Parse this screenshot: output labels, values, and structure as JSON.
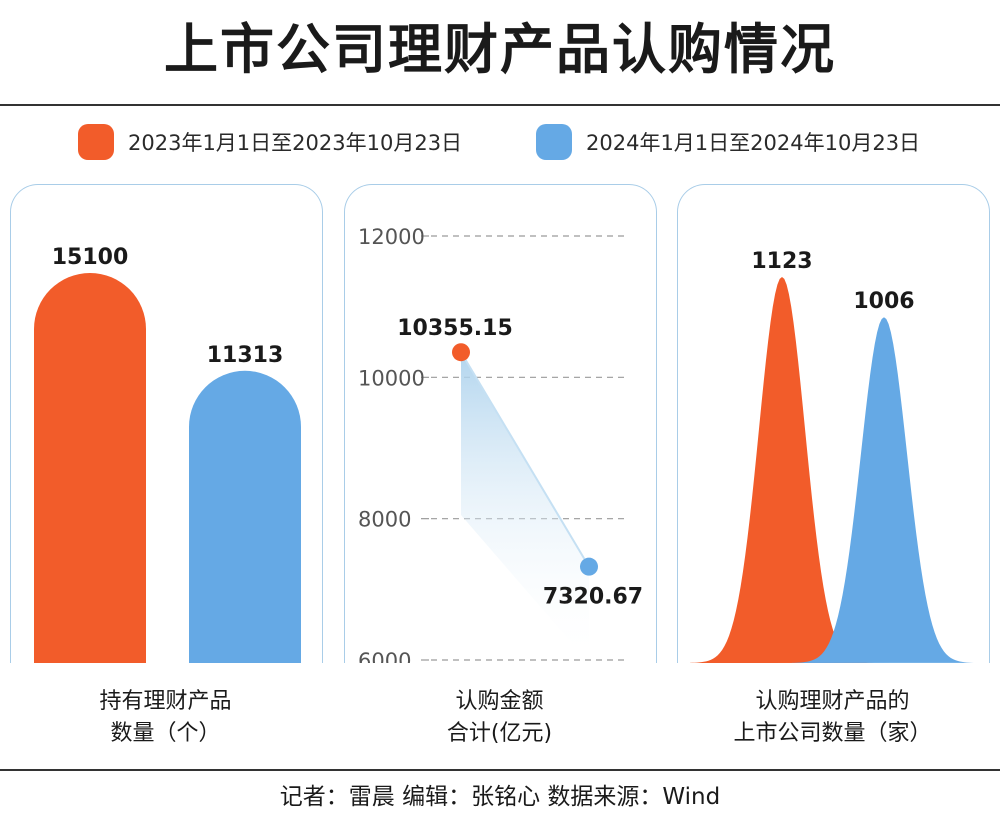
{
  "title": "上市公司理财产品认购情况",
  "legend": [
    {
      "label": "2023年1月1日至2023年10月23日",
      "color": "#F25C2A"
    },
    {
      "label": "2024年1月1日至2024年10月23日",
      "color": "#65A9E5"
    }
  ],
  "panels": {
    "left": {
      "caption_line1": "持有理财产品",
      "caption_line2": "数量（个）"
    },
    "middle": {
      "caption_line1": "认购金额",
      "caption_line2": "合计(亿元)"
    },
    "right": {
      "caption_line1": "认购理财产品的",
      "caption_line2": "上市公司数量（家）"
    }
  },
  "footer": "记者：雷晨  编辑：张铭心  数据来源：Wind",
  "chart_data": [
    {
      "type": "bar",
      "categories": [
        "2023年1月1日至2023年10月23日",
        "2024年1月1日至2024年10月23日"
      ],
      "values": [
        15100,
        11313
      ],
      "value_labels": [
        "15100",
        "11313"
      ],
      "colors": [
        "#F25C2A",
        "#65A9E5"
      ],
      "title": "持有理财产品数量（个）"
    },
    {
      "type": "line",
      "categories": [
        "2023年1月1日至2023年10月23日",
        "2024年1月1日至2024年10月23日"
      ],
      "values": [
        10355.15,
        7320.67
      ],
      "value_labels": [
        "10355.15",
        "7320.67"
      ],
      "colors": [
        "#F25C2A",
        "#65A9E5"
      ],
      "ylim": [
        6000,
        12000
      ],
      "yticks": [
        "12000",
        "10000",
        "8000",
        "6000"
      ],
      "grid": true,
      "title": "认购金额合计(亿元)"
    },
    {
      "type": "area",
      "categories": [
        "2023年1月1日至2023年10月23日",
        "2024年1月1日至2024年10月23日"
      ],
      "values": [
        1123,
        1006
      ],
      "value_labels": [
        "1123",
        "1006"
      ],
      "colors": [
        "#F25C2A",
        "#65A9E5"
      ],
      "title": "认购理财产品的上市公司数量（家）"
    }
  ]
}
